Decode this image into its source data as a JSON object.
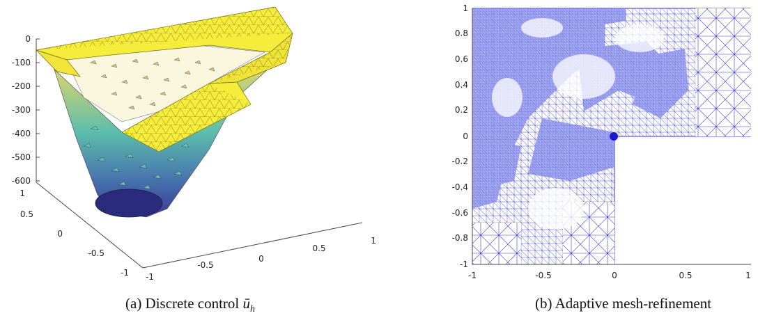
{
  "figure_a": {
    "caption_prefix": "(a) Discrete control",
    "caption_symbol": "ū",
    "caption_subscript": "h",
    "chart_data": {
      "type": "surface",
      "z_ticks": [
        "0",
        "-100",
        "-200",
        "-300",
        "-400",
        "-500",
        "-600"
      ],
      "y_ticks": [
        "1",
        "0.5",
        "0",
        "-0.5",
        "-1"
      ],
      "x_ticks": [
        "-1",
        "-0.5",
        "0",
        "0.5",
        "1"
      ],
      "zlim": [
        -600,
        0
      ],
      "xlim": [
        -1,
        1
      ],
      "ylim": [
        -1,
        1
      ],
      "colors": {
        "top": "#f5ec3c",
        "mid": "#3fb8a8",
        "bottom": "#2a2a8c"
      }
    }
  },
  "figure_b": {
    "caption": "(b) Adaptive mesh-refinement",
    "chart_data": {
      "type": "mesh",
      "y_ticks": [
        "1",
        "0.8",
        "0.6",
        "0.4",
        "0.2",
        "0",
        "-0.2",
        "-0.4",
        "-0.6",
        "-0.8",
        "-1"
      ],
      "x_ticks": [
        "-1",
        "-0.5",
        "0",
        "0.5",
        "1"
      ],
      "xlim": [
        -1,
        1
      ],
      "ylim": [
        -1,
        1
      ],
      "domain": "L-shaped",
      "mesh_color": "#3333dd"
    }
  }
}
